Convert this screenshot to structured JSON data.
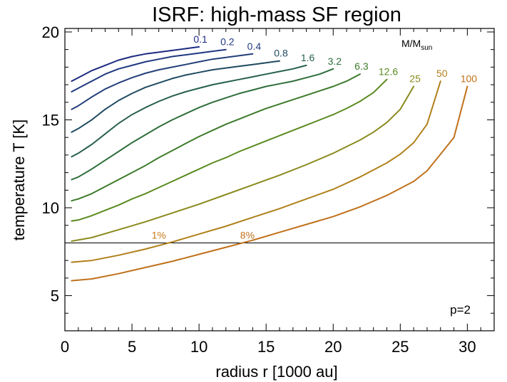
{
  "chart_data": {
    "type": "line",
    "title": "ISRF: high-mass SF region",
    "xlabel": "radius r [1000 au]",
    "ylabel": "temperature T [K]",
    "xlim": [
      0,
      32
    ],
    "ylim": [
      3,
      20.2
    ],
    "x_ticks": [
      "0",
      "5",
      "10",
      "15",
      "20",
      "25",
      "30"
    ],
    "y_ticks": [
      "5",
      "10",
      "15",
      "20"
    ],
    "legend_title": {
      "main": "M/M",
      "sub": "sun"
    },
    "param_label": "p=2",
    "hline": {
      "y": 8.0
    },
    "hline_labels": [
      {
        "text": "1%",
        "x": 7,
        "y": 8.25,
        "color": "#c8781a"
      },
      {
        "text": "8%",
        "x": 13.6,
        "y": 8.25,
        "color": "#c0701a"
      }
    ],
    "series": [
      {
        "name": "0.1",
        "color": "#1c2a80",
        "x": [
          0.5,
          1,
          2,
          3,
          4,
          5,
          6,
          7,
          8,
          9,
          10
        ],
        "y": [
          17.2,
          17.4,
          17.8,
          18.1,
          18.4,
          18.6,
          18.75,
          18.85,
          18.95,
          19.05,
          19.15
        ]
      },
      {
        "name": "0.2",
        "color": "#1f3880",
        "x": [
          0.5,
          1,
          2,
          3,
          4,
          5,
          6,
          7,
          8,
          9,
          10,
          11,
          12
        ],
        "y": [
          16.6,
          16.8,
          17.2,
          17.6,
          17.9,
          18.1,
          18.3,
          18.45,
          18.6,
          18.7,
          18.8,
          18.9,
          19.0
        ]
      },
      {
        "name": "0.4",
        "color": "#243f7a",
        "x": [
          0.5,
          1,
          2,
          3,
          4,
          5,
          6,
          7,
          8,
          9,
          10,
          11,
          12,
          13,
          14
        ],
        "y": [
          15.6,
          15.8,
          16.3,
          16.75,
          17.1,
          17.4,
          17.65,
          17.85,
          18.0,
          18.15,
          18.3,
          18.45,
          18.55,
          18.65,
          18.75
        ]
      },
      {
        "name": "0.8",
        "color": "#1f4a60",
        "x": [
          0.5,
          1,
          2,
          3,
          4,
          5,
          6,
          7,
          8,
          9,
          10,
          11,
          12,
          13,
          14,
          15,
          16
        ],
        "y": [
          14.3,
          14.5,
          15.0,
          15.6,
          16.1,
          16.5,
          16.85,
          17.1,
          17.35,
          17.55,
          17.7,
          17.85,
          17.95,
          18.05,
          18.15,
          18.25,
          18.35
        ]
      },
      {
        "name": "1.6",
        "color": "#27604a",
        "x": [
          0.5,
          1,
          2,
          3,
          4,
          5,
          6,
          7,
          8,
          9,
          10,
          11,
          12,
          13,
          14,
          15,
          16,
          17,
          18
        ],
        "y": [
          12.9,
          13.1,
          13.6,
          14.2,
          14.8,
          15.3,
          15.7,
          16.05,
          16.35,
          16.6,
          16.8,
          17.0,
          17.15,
          17.3,
          17.45,
          17.6,
          17.75,
          17.9,
          18.1
        ]
      },
      {
        "name": "3.2",
        "color": "#2e6e3a",
        "x": [
          0.5,
          1,
          2,
          3,
          4,
          5,
          6,
          7,
          8,
          9,
          10,
          11,
          12,
          13,
          14,
          15,
          16,
          17,
          18,
          19,
          20
        ],
        "y": [
          11.6,
          11.75,
          12.2,
          12.7,
          13.2,
          13.7,
          14.15,
          14.6,
          15.0,
          15.35,
          15.7,
          16.0,
          16.25,
          16.5,
          16.7,
          16.9,
          17.05,
          17.2,
          17.4,
          17.6,
          17.9
        ]
      },
      {
        "name": "6.3",
        "color": "#3d7a2a",
        "x": [
          0.5,
          1,
          2,
          3,
          4,
          5,
          6,
          7,
          8,
          9,
          10,
          11,
          12,
          13,
          14,
          15,
          16,
          17,
          18,
          19,
          20,
          21,
          22
        ],
        "y": [
          10.4,
          10.5,
          10.8,
          11.2,
          11.6,
          12.0,
          12.4,
          12.85,
          13.25,
          13.65,
          14.05,
          14.4,
          14.75,
          15.05,
          15.35,
          15.65,
          15.9,
          16.15,
          16.4,
          16.65,
          16.9,
          17.2,
          17.6
        ]
      },
      {
        "name": "12.6",
        "color": "#5a8a20",
        "x": [
          0.5,
          1,
          2,
          3,
          4,
          5,
          6,
          7,
          8,
          9,
          10,
          11,
          12,
          13,
          14,
          15,
          16,
          17,
          18,
          19,
          20,
          21,
          22,
          23,
          24
        ],
        "y": [
          9.25,
          9.3,
          9.55,
          9.85,
          10.15,
          10.5,
          10.8,
          11.15,
          11.5,
          11.85,
          12.2,
          12.55,
          12.85,
          13.2,
          13.5,
          13.8,
          14.1,
          14.4,
          14.7,
          15.0,
          15.3,
          15.65,
          16.05,
          16.55,
          17.3
        ]
      },
      {
        "name": "25",
        "color": "#8a8a1e",
        "x": [
          0.5,
          2,
          4,
          6,
          8,
          10,
          12,
          14,
          16,
          18,
          20,
          22,
          23,
          24,
          25,
          26
        ],
        "y": [
          8.1,
          8.3,
          8.75,
          9.2,
          9.7,
          10.2,
          10.75,
          11.3,
          11.85,
          12.45,
          13.1,
          13.85,
          14.3,
          14.85,
          15.6,
          16.9
        ]
      },
      {
        "name": "50",
        "color": "#b0801a",
        "x": [
          0.5,
          2,
          4,
          6,
          8,
          10,
          12,
          14,
          16,
          18,
          20,
          22,
          24,
          25,
          26,
          27,
          28
        ],
        "y": [
          6.9,
          7.0,
          7.3,
          7.65,
          8.05,
          8.5,
          8.95,
          9.45,
          9.95,
          10.5,
          11.05,
          11.75,
          12.55,
          13.05,
          13.7,
          14.75,
          17.2
        ]
      },
      {
        "name": "100",
        "color": "#c0701a",
        "x": [
          0.5,
          2,
          4,
          6,
          8,
          10,
          12,
          14,
          16,
          18,
          20,
          22,
          24,
          26,
          27,
          28,
          29,
          30
        ],
        "y": [
          5.85,
          5.95,
          6.25,
          6.6,
          6.95,
          7.35,
          7.75,
          8.15,
          8.6,
          9.05,
          9.5,
          10.05,
          10.7,
          11.5,
          12.1,
          13.05,
          14.0,
          16.9
        ]
      }
    ]
  }
}
